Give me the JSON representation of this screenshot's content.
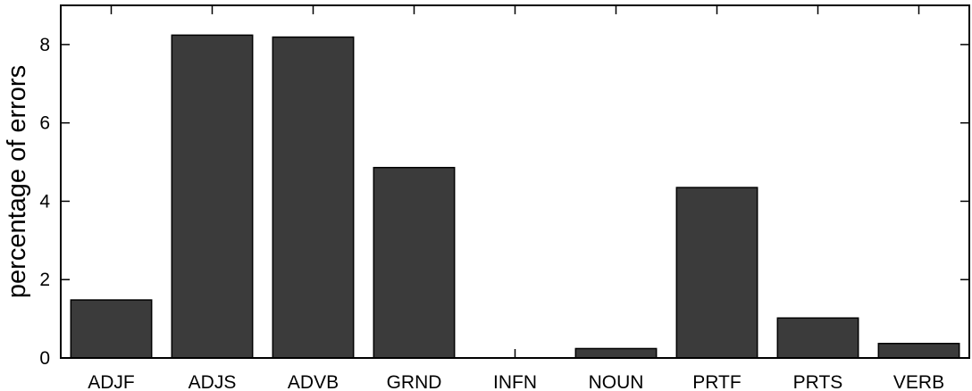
{
  "chart_data": {
    "type": "bar",
    "title": "",
    "xlabel": "",
    "ylabel": "percentage of errors",
    "categories": [
      "ADJF",
      "ADJS",
      "ADVB",
      "GRND",
      "INFN",
      "NOUN",
      "PRTF",
      "PRTS",
      "VERB"
    ],
    "values": [
      1.48,
      8.24,
      8.19,
      4.86,
      0.0,
      0.24,
      4.35,
      1.02,
      0.37
    ],
    "ylim": [
      0,
      9
    ],
    "yticks": [
      0,
      2,
      4,
      6,
      8
    ],
    "grid": false,
    "legend": "none",
    "bar_color": "#3b3b3b",
    "bar_edge_color": "#000000"
  }
}
